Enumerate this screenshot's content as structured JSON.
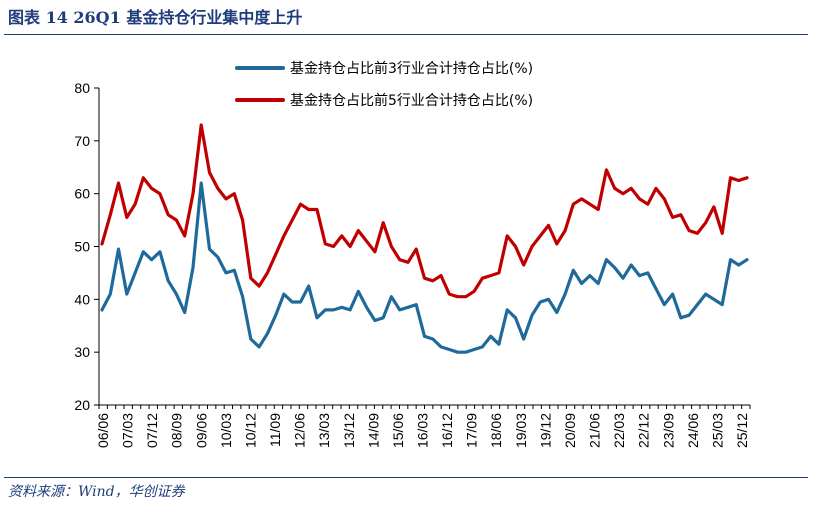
{
  "header": {
    "title": "图表 14   26Q1 基金持仓行业集中度上升"
  },
  "footer": {
    "source": "资料来源：Wind，华创证券"
  },
  "colors": {
    "accent": "#1f3d7a",
    "series_blue": "#1f6a9a",
    "series_red": "#c00000"
  },
  "chart_data": {
    "type": "line",
    "ylim": [
      20,
      80
    ],
    "yticks": [
      20,
      30,
      40,
      50,
      60,
      70,
      80
    ],
    "x_tick_labels": [
      "06/06",
      "07/03",
      "07/12",
      "08/09",
      "09/06",
      "10/03",
      "10/12",
      "11/09",
      "12/06",
      "13/03",
      "13/12",
      "14/09",
      "15/06",
      "16/03",
      "16/12",
      "17/09",
      "18/06",
      "19/03",
      "19/12",
      "20/09",
      "21/06",
      "22/03",
      "22/12",
      "23/09",
      "24/06",
      "25/03",
      "25/12"
    ],
    "legend_position": "top",
    "grid": false,
    "series": [
      {
        "name": "基金持仓占比前3行业合计持仓占比(%)",
        "color": "#1f6a9a",
        "values": [
          38,
          41,
          49.5,
          41,
          45,
          49,
          47.5,
          49,
          43.5,
          41,
          37.5,
          46,
          62,
          49.5,
          48,
          45,
          45.5,
          40.5,
          32.5,
          31,
          33.5,
          37,
          41,
          39.5,
          39.5,
          42.5,
          36.5,
          38,
          38,
          38.5,
          38,
          41.5,
          38.5,
          36,
          36.5,
          40.5,
          38,
          38.5,
          39,
          33,
          32.5,
          31,
          30.5,
          30,
          30,
          30.5,
          31,
          33,
          31.5,
          38,
          36.5,
          32.5,
          37,
          39.5,
          40,
          37.5,
          41,
          45.5,
          43,
          44.5,
          43,
          47.5,
          46,
          44,
          46.5,
          44.5,
          45,
          42,
          39,
          41,
          36.5,
          37,
          39,
          41,
          40,
          39,
          47.5,
          46.5,
          47.5
        ]
      },
      {
        "name": "基金持仓占比前5行业合计持仓占比(%)",
        "color": "#c00000",
        "values": [
          50.5,
          56,
          62,
          55.5,
          58,
          63,
          61,
          60,
          56,
          55,
          52,
          60,
          73,
          64,
          61,
          59,
          60,
          55,
          44,
          42.5,
          45,
          48.5,
          52,
          55,
          58,
          57,
          57,
          50.5,
          50,
          52,
          50,
          53,
          51,
          49,
          54.5,
          50,
          47.5,
          47,
          49.5,
          44,
          43.5,
          44.5,
          41,
          40.5,
          40.5,
          41.5,
          44,
          44.5,
          45,
          52,
          50,
          46.5,
          50,
          52,
          54,
          50.5,
          53,
          58,
          59,
          58,
          57,
          64.5,
          61,
          60,
          61,
          59,
          58,
          61,
          59,
          55.5,
          56,
          53,
          52.5,
          54.5,
          57.5,
          52.5,
          63,
          62.5,
          63
        ]
      }
    ]
  }
}
